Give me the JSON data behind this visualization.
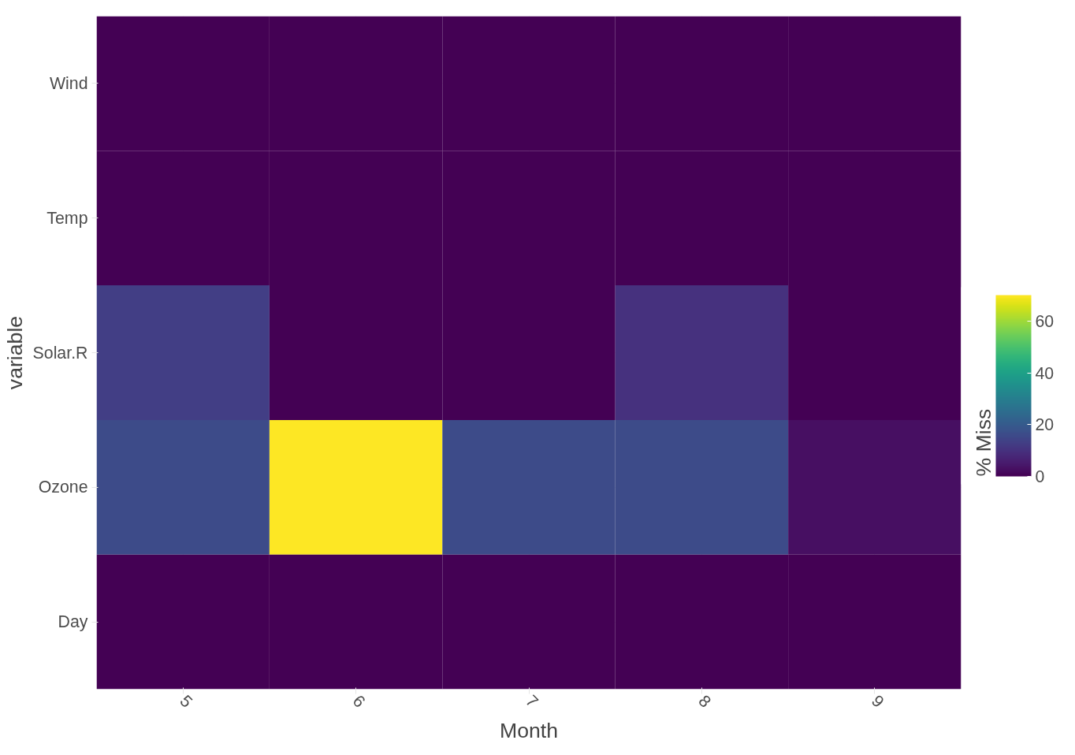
{
  "chart_data": {
    "type": "heatmap",
    "xlabel": "Month",
    "ylabel": "variable",
    "clabel": "% Miss",
    "categories": [
      "5",
      "6",
      "7",
      "8",
      "9"
    ],
    "y_categories": [
      "Wind",
      "Temp",
      "Solar.R",
      "Ozone",
      "Day"
    ],
    "cells": [
      [
        0,
        0,
        0,
        0,
        0
      ],
      [
        0,
        0,
        0,
        0,
        0
      ],
      [
        13,
        0,
        0,
        10,
        0
      ],
      [
        16,
        70,
        16,
        16,
        3
      ],
      [
        0,
        0,
        0,
        0,
        0
      ]
    ],
    "clim": [
      0,
      70
    ],
    "cticks": [
      0,
      20,
      40,
      60
    ],
    "grid": true
  }
}
